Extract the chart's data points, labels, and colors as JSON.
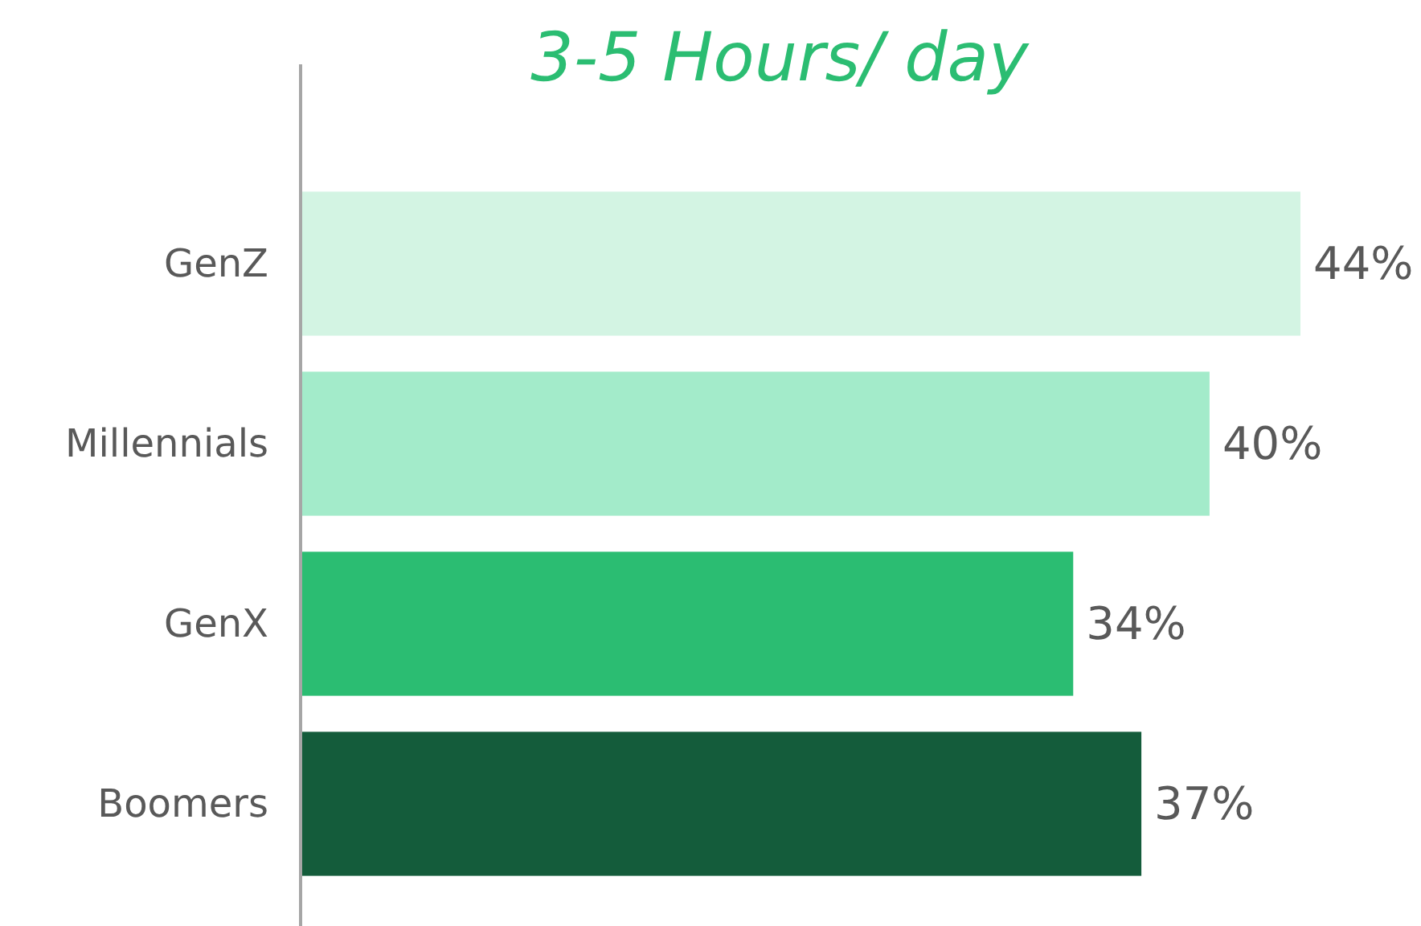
{
  "chart_data": {
    "type": "bar",
    "orientation": "horizontal",
    "title": "3-5 Hours/ day",
    "categories": [
      "GenZ",
      "Millennials",
      "GenX",
      "Boomers"
    ],
    "values": [
      44,
      40,
      34,
      37
    ],
    "colors": [
      "#d3f4e3",
      "#a3ebca",
      "#2bbd72",
      "#145c3b"
    ],
    "value_labels": [
      "44%",
      "40%",
      "34%",
      "37%"
    ]
  }
}
